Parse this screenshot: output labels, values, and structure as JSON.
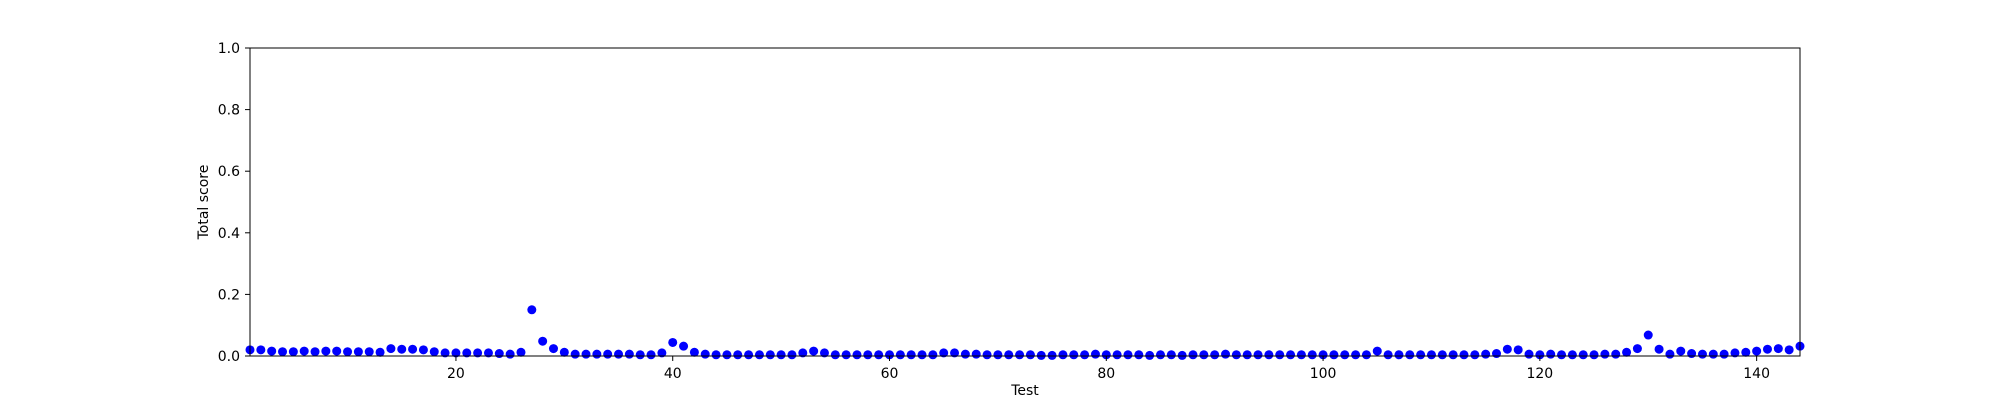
{
  "chart_data": {
    "type": "scatter",
    "xlabel": "Test",
    "ylabel": "Total score",
    "xlim": [
      1,
      144
    ],
    "ylim": [
      0,
      1.0
    ],
    "xticks": [
      20,
      40,
      60,
      80,
      100,
      120,
      140
    ],
    "xtick_labels": [
      "20",
      "40",
      "60",
      "80",
      "100",
      "120",
      "140"
    ],
    "yticks": [
      0.0,
      0.2,
      0.4,
      0.6,
      0.8,
      1.0
    ],
    "ytick_labels": [
      "0.0",
      "0.2",
      "0.4",
      "0.6",
      "0.8",
      "1.0"
    ],
    "grid": false,
    "marker_color": "#0000ff",
    "x": [
      1,
      2,
      3,
      4,
      5,
      6,
      7,
      8,
      9,
      10,
      11,
      12,
      13,
      14,
      15,
      16,
      17,
      18,
      19,
      20,
      21,
      22,
      23,
      24,
      25,
      26,
      27,
      28,
      29,
      30,
      31,
      32,
      33,
      34,
      35,
      36,
      37,
      38,
      39,
      40,
      41,
      42,
      43,
      44,
      45,
      46,
      47,
      48,
      49,
      50,
      51,
      52,
      53,
      54,
      55,
      56,
      57,
      58,
      59,
      60,
      61,
      62,
      63,
      64,
      65,
      66,
      67,
      68,
      69,
      70,
      71,
      72,
      73,
      74,
      75,
      76,
      77,
      78,
      79,
      80,
      81,
      82,
      83,
      84,
      85,
      86,
      87,
      88,
      89,
      90,
      91,
      92,
      93,
      94,
      95,
      96,
      97,
      98,
      99,
      100,
      101,
      102,
      103,
      104,
      105,
      106,
      107,
      108,
      109,
      110,
      111,
      112,
      113,
      114,
      115,
      116,
      117,
      118,
      119,
      120,
      121,
      122,
      123,
      124,
      125,
      126,
      127,
      128,
      129,
      130,
      131,
      132,
      133,
      134,
      135,
      136,
      137,
      138,
      139,
      140,
      141,
      142,
      143,
      144
    ],
    "y": [
      0.02,
      0.02,
      0.016,
      0.014,
      0.014,
      0.016,
      0.014,
      0.016,
      0.016,
      0.014,
      0.014,
      0.014,
      0.012,
      0.024,
      0.022,
      0.022,
      0.02,
      0.014,
      0.01,
      0.01,
      0.01,
      0.01,
      0.01,
      0.008,
      0.006,
      0.012,
      0.15,
      0.048,
      0.024,
      0.012,
      0.006,
      0.006,
      0.006,
      0.006,
      0.006,
      0.006,
      0.004,
      0.004,
      0.01,
      0.044,
      0.032,
      0.012,
      0.006,
      0.004,
      0.004,
      0.004,
      0.004,
      0.004,
      0.004,
      0.004,
      0.004,
      0.01,
      0.016,
      0.01,
      0.004,
      0.004,
      0.004,
      0.004,
      0.004,
      0.004,
      0.004,
      0.004,
      0.004,
      0.004,
      0.01,
      0.01,
      0.006,
      0.006,
      0.004,
      0.004,
      0.004,
      0.004,
      0.004,
      0.002,
      0.002,
      0.004,
      0.004,
      0.004,
      0.006,
      0.004,
      0.004,
      0.004,
      0.004,
      0.002,
      0.004,
      0.004,
      0.002,
      0.004,
      0.004,
      0.004,
      0.006,
      0.004,
      0.004,
      0.004,
      0.004,
      0.004,
      0.004,
      0.004,
      0.004,
      0.004,
      0.004,
      0.004,
      0.004,
      0.004,
      0.016,
      0.004,
      0.004,
      0.004,
      0.004,
      0.004,
      0.004,
      0.004,
      0.004,
      0.004,
      0.006,
      0.008,
      0.022,
      0.02,
      0.006,
      0.004,
      0.006,
      0.004,
      0.004,
      0.004,
      0.004,
      0.006,
      0.006,
      0.012,
      0.024,
      0.068,
      0.022,
      0.006,
      0.016,
      0.008,
      0.006,
      0.006,
      0.006,
      0.01,
      0.012,
      0.016,
      0.022,
      0.024,
      0.02,
      0.032
    ]
  }
}
